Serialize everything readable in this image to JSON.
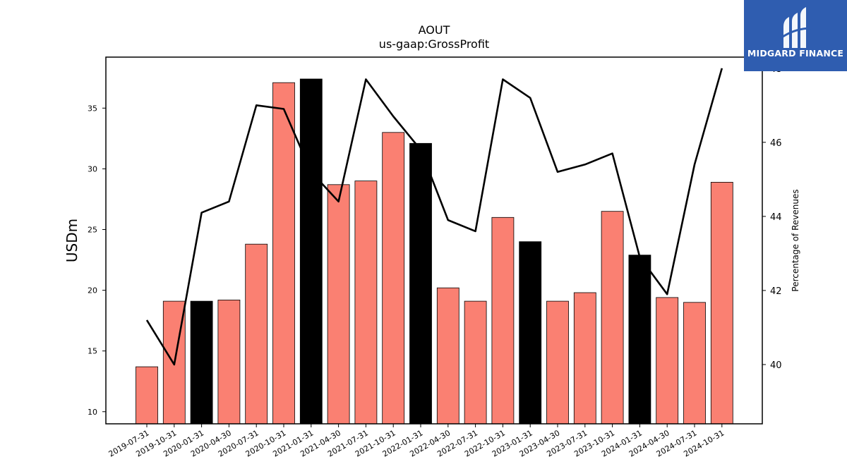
{
  "chart_data": {
    "type": "bar",
    "title": "AOUT",
    "subtitle": "us-gaap:GrossProfit",
    "ylabel": "USDm",
    "ylabel_right": "Percentage of Revenues",
    "categories": [
      "2019-07-31",
      "2019-10-31",
      "2020-01-31",
      "2020-04-30",
      "2020-07-31",
      "2020-10-31",
      "2021-01-31",
      "2021-04-30",
      "2021-07-31",
      "2021-10-31",
      "2022-01-31",
      "2022-04-30",
      "2022-07-31",
      "2022-10-31",
      "2023-01-31",
      "2023-04-30",
      "2023-07-31",
      "2023-10-31",
      "2024-01-31",
      "2024-04-30",
      "2024-07-31",
      "2024-10-31"
    ],
    "series": [
      {
        "type": "bar",
        "axis": "left",
        "values": [
          13.7,
          19.1,
          19.1,
          19.2,
          23.8,
          37.1,
          37.4,
          28.7,
          29.0,
          33.0,
          32.1,
          20.2,
          19.1,
          26.0,
          24.0,
          19.1,
          19.8,
          26.5,
          22.9,
          19.4,
          19.0,
          28.9
        ],
        "highlight": [
          false,
          false,
          true,
          false,
          false,
          false,
          true,
          false,
          false,
          false,
          true,
          false,
          false,
          false,
          true,
          false,
          false,
          false,
          true,
          false,
          false,
          false
        ],
        "color": "#fa8072",
        "highlight_color": "#000000"
      },
      {
        "type": "line",
        "axis": "right",
        "values": [
          41.2,
          40.0,
          44.1,
          44.4,
          47.0,
          46.9,
          45.2,
          44.4,
          47.7,
          46.7,
          45.8,
          43.9,
          43.6,
          47.7,
          47.2,
          45.2,
          45.4,
          45.7,
          42.9,
          41.9,
          45.4,
          48.0
        ],
        "color": "#000000"
      }
    ],
    "ylim": [
      9,
      39.2
    ],
    "ylim_right": [
      38.4,
      48.3
    ],
    "yticks": [
      10,
      15,
      20,
      25,
      30,
      35
    ],
    "yticks_right": [
      40,
      42,
      44,
      46,
      48
    ],
    "grid": false,
    "legend": "none"
  },
  "logo": {
    "text": "MIDGARD FINANCE",
    "color": "#2f5db0"
  }
}
